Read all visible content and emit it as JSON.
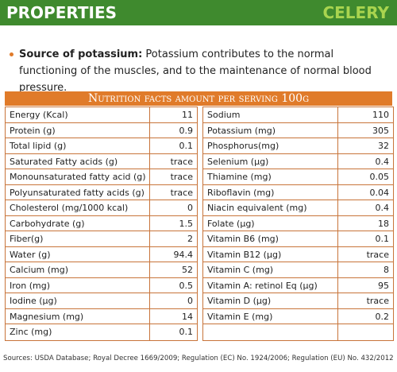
{
  "header": {
    "title": "PROPERTIES",
    "product": "CELERY"
  },
  "bullet": {
    "label": "Source of potassium:",
    "text": "Potassium contributes to the normal functioning of the muscles, and to the maintenance of normal blood pressure."
  },
  "table": {
    "title": "Nutrition facts amount per serving 100g",
    "left": [
      [
        "Energy (Kcal)",
        "11"
      ],
      [
        "Protein  (g)",
        "0.9"
      ],
      [
        "Total lipid  (g)",
        "0.1"
      ],
      [
        "Saturated Fatty acids  (g)",
        "trace"
      ],
      [
        "Monounsaturated fatty acid  (g)",
        "trace"
      ],
      [
        "Polyunsaturated fatty acids  (g)",
        "trace"
      ],
      [
        "Cholesterol  (mg/1000 kcal)",
        "0"
      ],
      [
        "Carbohydrate  (g)",
        "1.5"
      ],
      [
        "Fiber(g)",
        "2"
      ],
      [
        "Water (g)",
        "94.4"
      ],
      [
        "Calcium  (mg)",
        "52"
      ],
      [
        "Iron  (mg)",
        "0.5"
      ],
      [
        "Iodine (µg)",
        "0"
      ],
      [
        "Magnesium (mg)",
        "14"
      ],
      [
        "Zinc  (mg)",
        "0.1"
      ]
    ],
    "right": [
      [
        "Sodium",
        "110"
      ],
      [
        "Potassium (mg)",
        "305"
      ],
      [
        "Phosphorus(mg)",
        "32"
      ],
      [
        "Selenium (µg)",
        "0.4"
      ],
      [
        "Thiamine (mg)",
        "0.05"
      ],
      [
        "Riboflavin (mg)",
        "0.04"
      ],
      [
        "Niacin equivalent  (mg)",
        "0.4"
      ],
      [
        "Folate  (µg)",
        "18"
      ],
      [
        "Vitamin B6  (mg)",
        "0.1"
      ],
      [
        "Vitamin B12  (µg)",
        "trace"
      ],
      [
        "Vitamin C  (mg)",
        "8"
      ],
      [
        "Vitamin A: retinol Eq (µg)",
        "95"
      ],
      [
        "Vitamin D  (µg)",
        "trace"
      ],
      [
        "Vitamin E  (mg)",
        "0.2"
      ]
    ]
  },
  "sources": "Sources: USDA Database; Royal Decree 1669/2009; Regulation (EC) No. 1924/2006; Regulation (EU) No. 432/2012"
}
